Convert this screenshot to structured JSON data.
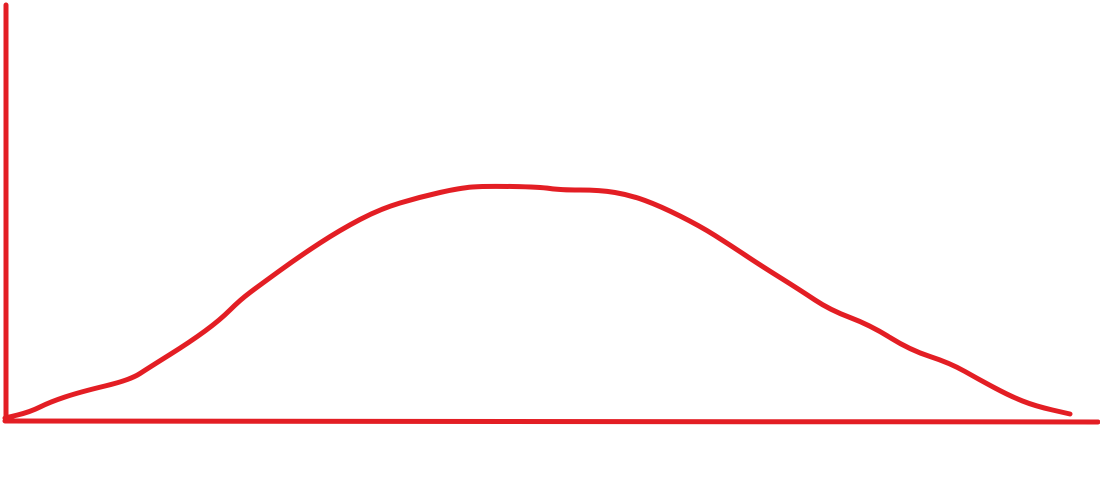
{
  "diagram": {
    "type": "hand-drawn bell curve on axes",
    "stroke_color": "#e31e24",
    "background_color": "#ffffff",
    "axes": {
      "x_label": "",
      "y_label": ""
    }
  }
}
